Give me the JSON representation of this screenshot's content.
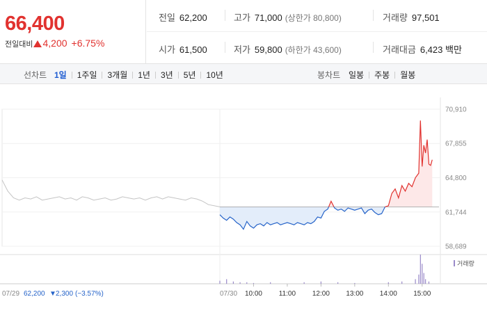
{
  "quote": {
    "price": "66,400",
    "change_label": "전일대비",
    "change": "4,200",
    "change_pct": "+6.75%"
  },
  "stats": {
    "prev_close": {
      "label": "전일",
      "value": "62,200"
    },
    "high": {
      "label": "고가",
      "value": "71,000",
      "sub": "(상한가 80,800)"
    },
    "volume": {
      "label": "거래량",
      "value": "97,501"
    },
    "open": {
      "label": "시가",
      "value": "61,500"
    },
    "low": {
      "label": "저가",
      "value": "59,800",
      "sub": "(하한가 43,600)"
    },
    "amount": {
      "label": "거래대금",
      "value": "6,423 백만"
    }
  },
  "toolbar": {
    "line_label": "선차트",
    "line_periods": [
      "1일",
      "1주일",
      "3개월",
      "1년",
      "3년",
      "5년",
      "10년"
    ],
    "active_period": "1일",
    "candle_label": "봉차트",
    "candle_periods": [
      "일봉",
      "주봉",
      "월봉"
    ]
  },
  "colors": {
    "up": "#e1322f",
    "down": "#2563c9",
    "up_fill": "#fde8e8",
    "down_fill": "#e3edfa",
    "prev_day_line": "#c4c4c4",
    "volume": "#9a8ac9"
  },
  "chart_data": {
    "type": "line",
    "baseline": 62200,
    "ylim": [
      58689,
      70910
    ],
    "yticks": [
      "70,910",
      "67,855",
      "64,800",
      "61,744",
      "58,689"
    ],
    "ytick_values": [
      70910,
      67855,
      64800,
      61744,
      58689
    ],
    "xticks": [
      "10:00",
      "11:00",
      "12:00",
      "13:00",
      "14:00",
      "15:00"
    ],
    "xtick_hours": [
      10,
      11,
      12,
      13,
      14,
      15
    ],
    "session_start_hour": 9,
    "session_end_hour": 15.5,
    "prev_day": {
      "date": "07/29",
      "close": "62,200",
      "change": "2,300",
      "change_pct": "(−3.57%)",
      "values": [
        64600,
        63600,
        63000,
        62800,
        63000,
        62900,
        63100,
        62800,
        62900,
        63000,
        63100,
        62900,
        63000,
        62800,
        63100,
        63000,
        62800,
        62900,
        63000,
        62800,
        62900,
        63100,
        63000,
        62900,
        63000,
        62800,
        63000,
        63100,
        62900,
        63100,
        63000,
        62900,
        62800,
        63000,
        62900,
        62700,
        62400,
        62300,
        62200
      ]
    },
    "today": {
      "date": "07/30",
      "x": [
        9.0,
        9.1,
        9.2,
        9.3,
        9.4,
        9.5,
        9.6,
        9.7,
        9.8,
        9.9,
        10.0,
        10.1,
        10.2,
        10.3,
        10.4,
        10.5,
        10.6,
        10.7,
        10.8,
        10.9,
        11.0,
        11.1,
        11.2,
        11.3,
        11.4,
        11.5,
        11.6,
        11.7,
        11.8,
        11.9,
        12.0,
        12.1,
        12.2,
        12.3,
        12.4,
        12.5,
        12.6,
        12.7,
        12.8,
        12.9,
        13.0,
        13.1,
        13.2,
        13.3,
        13.4,
        13.5,
        13.6,
        13.7,
        13.8,
        13.9,
        14.0,
        14.1,
        14.2,
        14.3,
        14.4,
        14.5,
        14.6,
        14.7,
        14.8,
        14.9,
        14.95,
        15.0,
        15.05,
        15.1,
        15.15,
        15.2,
        15.25,
        15.3
      ],
      "values": [
        61500,
        61200,
        61000,
        61300,
        61100,
        60800,
        60600,
        60200,
        60900,
        60500,
        60300,
        60600,
        60700,
        60500,
        60800,
        60600,
        60700,
        60800,
        60600,
        60700,
        60800,
        60700,
        60600,
        60800,
        60700,
        60600,
        60800,
        60700,
        60900,
        61300,
        61200,
        61800,
        62000,
        62700,
        62100,
        61900,
        62000,
        61800,
        62100,
        62000,
        61900,
        62000,
        62100,
        61600,
        61900,
        62000,
        61700,
        61500,
        61600,
        62200,
        62300,
        63400,
        63800,
        63000,
        64100,
        63600,
        64300,
        64000,
        64800,
        65200,
        69900,
        65800,
        67700,
        67000,
        68200,
        66000,
        65900,
        66400
      ]
    },
    "volume": {
      "label": "거래량",
      "x": [
        9.0,
        9.2,
        9.4,
        9.6,
        9.8,
        10.0,
        10.5,
        11.5,
        12.0,
        12.5,
        13.0,
        14.0,
        14.4,
        14.8,
        14.9,
        14.95,
        15.0,
        15.05,
        15.1,
        15.2
      ],
      "values": [
        4,
        6,
        3,
        2,
        2,
        1,
        2,
        2,
        3,
        2,
        1,
        2,
        3,
        6,
        12,
        38,
        26,
        14,
        6,
        3
      ]
    }
  }
}
